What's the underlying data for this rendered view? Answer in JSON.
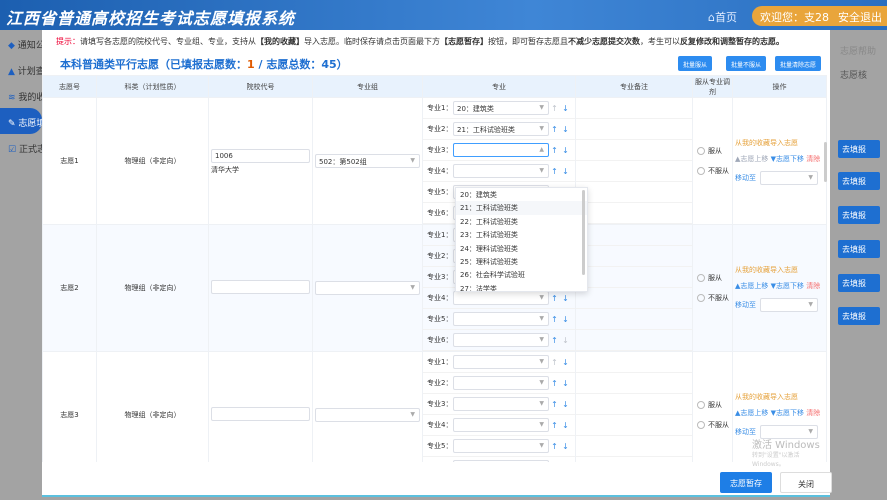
{
  "header": {
    "title": "江西省普通高校招生考试志愿填报系统",
    "home": "⌂首页",
    "welcome": "欢迎您：支28",
    "logout": "安全退出"
  },
  "sidebar": {
    "items": [
      {
        "label": "通知公告",
        "icon": "cube-icon"
      },
      {
        "label": "计划查询",
        "icon": "graduation-cap-icon"
      },
      {
        "label": "我的收藏",
        "icon": "layers-icon"
      },
      {
        "label": "志愿填报",
        "icon": "edit-icon",
        "active": true
      },
      {
        "label": "正式志愿",
        "icon": "check-icon"
      }
    ]
  },
  "background_right": {
    "help": "志愿帮助",
    "text": "志愿核",
    "fill_label": "去填报"
  },
  "tip": {
    "label": "提示：",
    "t1": "请填写各志愿的院校代号、专业组、专业，支持从",
    "b1": "【我的收藏】",
    "t2": "导入志愿。临时保存请点击页面最下方",
    "b2": "【志愿暂存】",
    "t3": "按钮，即可暂存志愿且",
    "b3": "不减少志愿提交次数",
    "t4": "，考生可以",
    "b4": "反复修改和调整暂存的志愿。"
  },
  "section": {
    "title_pre": "本科普通类平行志愿（已填报志愿数：",
    "filled": "1",
    "title_mid": " / 志愿总数：",
    "total": "45",
    "title_post": "）",
    "batch_obey": "批量服从",
    "batch_not_obey": "批量不服从",
    "batch_clear": "批量清除志愿"
  },
  "table": {
    "headers": [
      "志愿号",
      "科类（计划性质）",
      "院校代号",
      "专业组",
      "专业",
      "专业备注",
      "服从专业调剂",
      "操作"
    ],
    "rows": [
      {
        "no": "志愿1",
        "type": "物理组（非定向）",
        "code": "1006",
        "school": "清华大学",
        "group": "502：第502组",
        "majors": [
          "20：建筑类",
          "21：工科试验班类",
          "",
          "",
          "",
          ""
        ]
      },
      {
        "no": "志愿2",
        "type": "物理组（非定向）",
        "code": "",
        "school": "",
        "group": "",
        "majors": [
          "",
          "",
          "",
          "",
          "",
          ""
        ]
      },
      {
        "no": "志愿3",
        "type": "物理组（非定向）",
        "code": "",
        "school": "",
        "group": "",
        "majors": [
          "",
          "",
          "",
          "",
          "",
          ""
        ]
      }
    ],
    "major_label_prefix": "专业",
    "obey": "服从",
    "not_obey": "不服从",
    "import": "从我的收藏导入志愿",
    "move_up": "▲志愿上移",
    "move_down": "▼志愿下移",
    "clear": "清除",
    "move_to": "移动至"
  },
  "dropdown": {
    "options": [
      "20：建筑类",
      "21：工科试验班类",
      "22：工科试验班类",
      "23：工科试验班类",
      "24：理科试验班类",
      "25：理科试验班类",
      "26：社会科学试验班",
      "27：法学类"
    ],
    "hovered": 1
  },
  "watermark": {
    "line1": "激活 Windows",
    "line2": "转到\"设置\"以激活 Windows。"
  },
  "footer": {
    "save": "志愿暂存",
    "close": "关闭"
  }
}
